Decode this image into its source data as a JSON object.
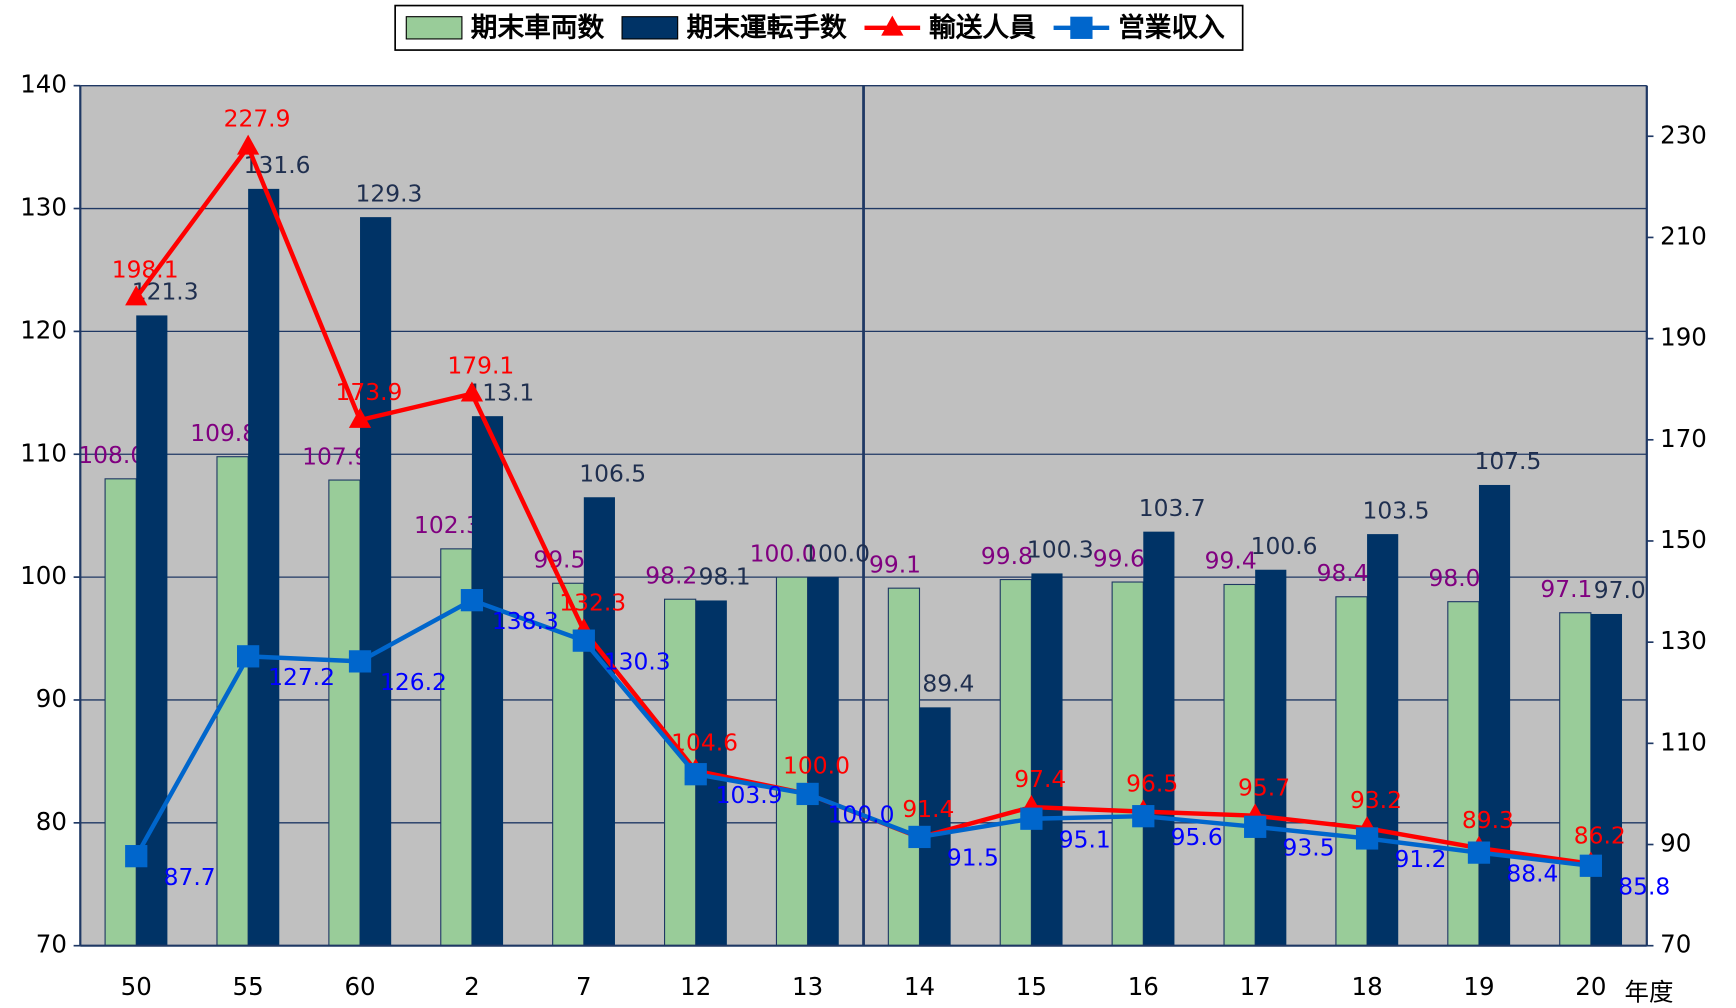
{
  "chart_data": {
    "type": "bar",
    "categories": [
      "50",
      "55",
      "60",
      "2",
      "7",
      "12",
      "13",
      "14",
      "15",
      "16",
      "17",
      "18",
      "19",
      "20"
    ],
    "x_label": "年度",
    "ylim": [
      70,
      140
    ],
    "yticks": [
      70,
      80,
      90,
      100,
      110,
      120,
      130,
      140
    ],
    "y2lim": [
      70,
      240
    ],
    "y2ticks": [
      70,
      90,
      110,
      130,
      150,
      170,
      190,
      210,
      230
    ],
    "grid": true,
    "background": "#c0c0c0",
    "series": [
      {
        "name": "期末車両数",
        "type": "bar",
        "color": "#99cc99",
        "label_color": "#800080",
        "values": [
          108.0,
          109.8,
          107.9,
          102.3,
          99.5,
          98.2,
          100.0,
          99.1,
          99.8,
          99.6,
          99.4,
          98.4,
          98.0,
          97.1
        ],
        "value_labels": [
          "108.0",
          "109.8",
          "107.9",
          "102.3",
          "99.5",
          "98.2",
          "100.0",
          "99.1",
          "99.8",
          "99.6",
          "99.4",
          "98.4",
          "98.0",
          "97.1"
        ]
      },
      {
        "name": "期末運転手数",
        "type": "bar",
        "color": "#003366",
        "label_color": "#1f2f4f",
        "values": [
          121.3,
          131.6,
          129.3,
          113.1,
          106.5,
          98.1,
          100.0,
          89.4,
          100.3,
          103.7,
          100.6,
          103.5,
          107.5,
          97.0
        ],
        "value_labels": [
          "121.3",
          "131.6",
          "129.3",
          "113.1",
          "106.5",
          "98.1",
          "100.0",
          "89.4",
          "100.3",
          "103.7",
          "100.6",
          "103.5",
          "107.5",
          "97.0"
        ]
      },
      {
        "name": "輸送人員",
        "type": "line",
        "axis": "y2",
        "marker": "triangle",
        "color": "#ff0000",
        "label_color": "#ff0000",
        "values": [
          198.1,
          227.9,
          173.9,
          179.1,
          132.3,
          104.6,
          100.0,
          91.4,
          97.4,
          96.5,
          95.7,
          93.2,
          89.3,
          86.2
        ],
        "value_labels": [
          "198.1",
          "227.9",
          "173.9",
          "179.1",
          "132.3",
          "104.6",
          "100.0",
          "91.4",
          "97.4",
          "96.5",
          "95.7",
          "93.2",
          "89.3",
          "86.2"
        ]
      },
      {
        "name": "営業収入",
        "type": "line",
        "axis": "y2",
        "marker": "square",
        "color": "#0066cc",
        "label_color": "#0000ff",
        "values": [
          87.7,
          127.2,
          126.2,
          138.3,
          130.3,
          103.9,
          100.0,
          91.5,
          95.1,
          95.6,
          93.5,
          91.2,
          88.4,
          85.8
        ],
        "value_labels": [
          "87.7",
          "127.2",
          "126.2",
          "138.3",
          "130.3",
          "103.9",
          "100.0",
          "91.5",
          "95.1",
          "95.6",
          "93.5",
          "91.2",
          "88.4",
          "85.8"
        ]
      }
    ]
  }
}
